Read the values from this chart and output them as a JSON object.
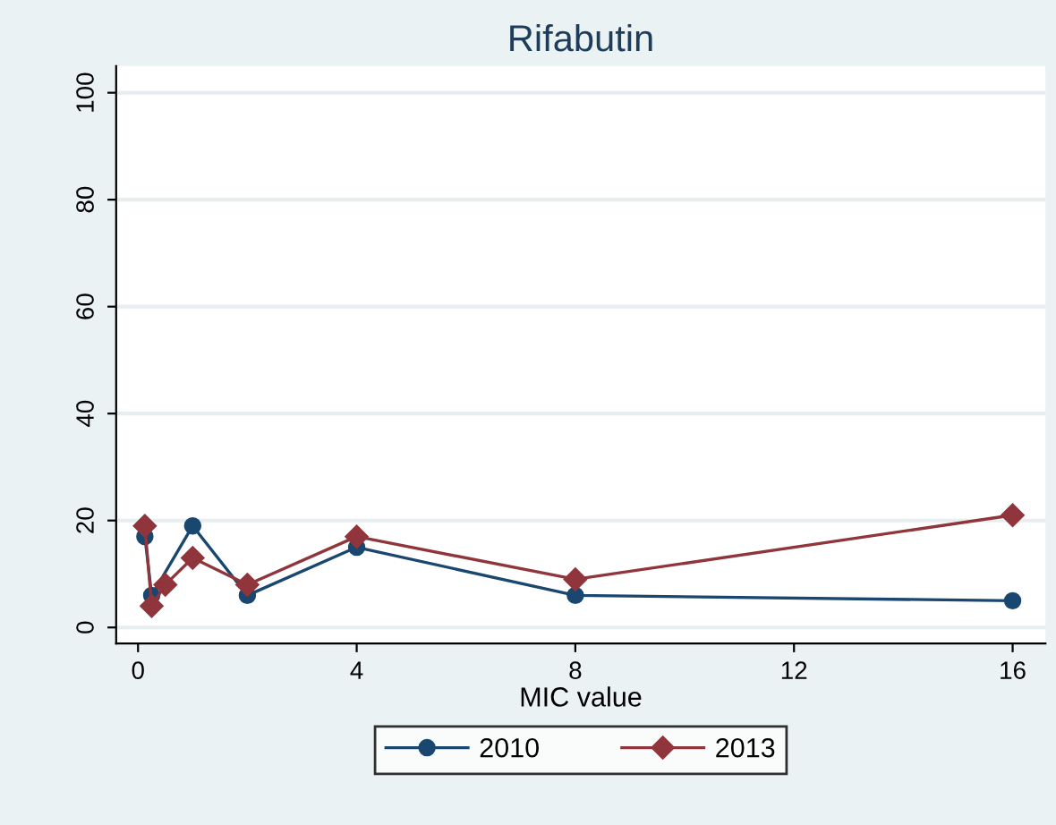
{
  "chart_data": {
    "type": "line",
    "title": "Rifabutin",
    "xlabel": "MIC value",
    "xlim": [
      -0.4,
      16.6
    ],
    "xticks": [
      0,
      4,
      8,
      12,
      16
    ],
    "ylim": [
      -3,
      105
    ],
    "yticks": [
      0,
      20,
      40,
      60,
      80,
      100
    ],
    "grid": "y",
    "legend": "bottom",
    "series": [
      {
        "name": "2010",
        "color": "#1a476f",
        "marker": "circle",
        "x": [
          0.125,
          0.25,
          1,
          2,
          4,
          8,
          16
        ],
        "values": [
          17,
          6,
          19,
          6,
          15,
          6,
          5
        ]
      },
      {
        "name": "2013",
        "color": "#90353b",
        "marker": "diamond",
        "x": [
          0.125,
          0.25,
          0.5,
          1,
          2,
          4,
          8,
          16
        ],
        "values": [
          19,
          4,
          8,
          13,
          8,
          17,
          9,
          21
        ]
      }
    ]
  }
}
